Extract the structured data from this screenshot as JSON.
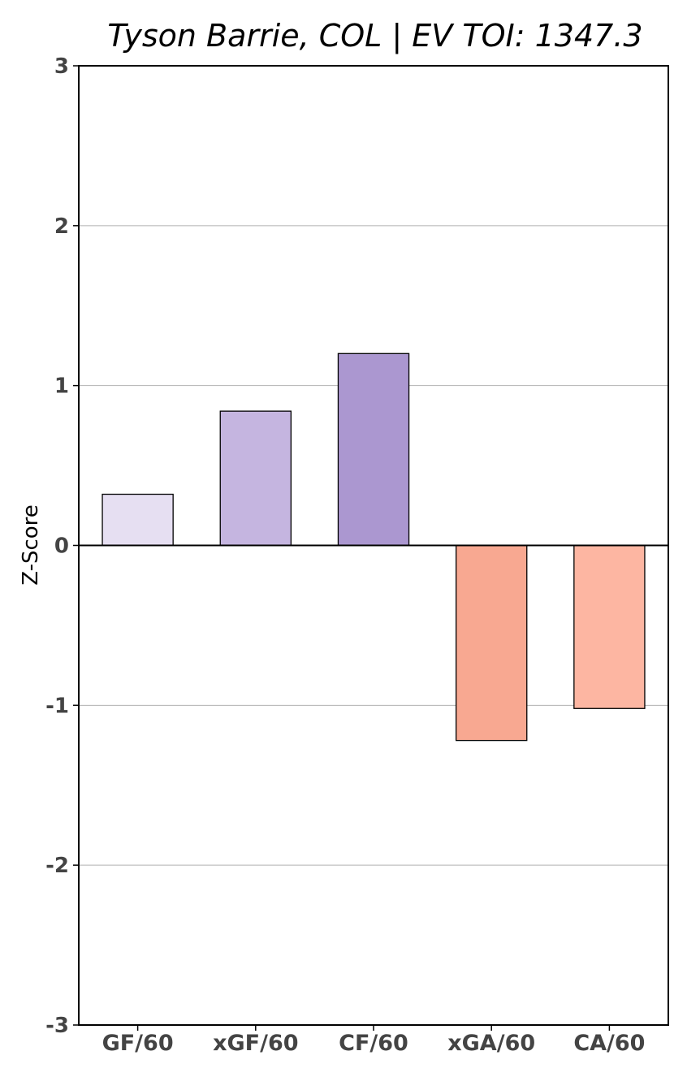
{
  "chart_data": {
    "type": "bar",
    "title": "Tyson Barrie, COL  |  EV TOI: 1347.3",
    "xlabel": "",
    "ylabel": "Z-Score",
    "categories": [
      "GF/60",
      "xGF/60",
      "CF/60",
      "xGA/60",
      "CA/60"
    ],
    "values": [
      0.32,
      0.84,
      1.2,
      -1.22,
      -1.02
    ],
    "colors": [
      "#e6dff2",
      "#c5b5e0",
      "#ab97d0",
      "#f8a891",
      "#fdb6a2"
    ],
    "ylim": [
      -3,
      3
    ],
    "yticks": [
      3,
      2,
      1,
      0,
      -1,
      -2,
      -3
    ],
    "grid": "y"
  }
}
